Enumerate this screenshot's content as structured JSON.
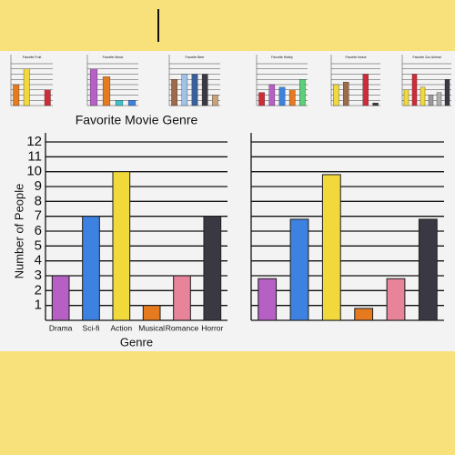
{
  "chart_data": [
    {
      "type": "bar",
      "title": "Favorite Movie Genre",
      "xlabel": "Genre",
      "ylabel": "Number of People",
      "categories": [
        "Drama",
        "Sci-fi",
        "Action",
        "Musical",
        "Romance",
        "Horror"
      ],
      "values": [
        3,
        7,
        10,
        1,
        3,
        7
      ],
      "colors": [
        "#b65fc4",
        "#3d82e0",
        "#f2d93b",
        "#e67a1e",
        "#e8849a",
        "#3a3842"
      ],
      "ylim": [
        0,
        12
      ],
      "yticks": [
        1,
        2,
        3,
        4,
        5,
        6,
        7,
        8,
        9,
        10,
        11,
        12
      ],
      "grid": true,
      "tick_labels": true
    },
    {
      "type": "bar",
      "categories": [
        null,
        null,
        null,
        null,
        null,
        null
      ],
      "values": [
        2.8,
        6.8,
        9.8,
        0.8,
        2.8,
        6.8
      ],
      "colors": [
        "#b65fc4",
        "#3d82e0",
        "#f2d93b",
        "#e67a1e",
        "#e8849a",
        "#3a3842"
      ],
      "ylim": [
        0,
        12
      ],
      "yticks": [
        1,
        2,
        3,
        4,
        5,
        6,
        7,
        8,
        9,
        10,
        11,
        12
      ],
      "grid": true,
      "tick_labels": false
    },
    {
      "type": "bar",
      "title": "Favorite Fruit",
      "values": [
        4,
        7,
        0,
        3
      ],
      "colors": [
        "#e67a1e",
        "#f2d93b",
        "#7cc46a",
        "#d12b3a"
      ],
      "ylim": [
        0,
        8
      ],
      "yticks": [
        1,
        2,
        3,
        4,
        5,
        6,
        7,
        8
      ],
      "grid": true,
      "tick_labels": false
    },
    {
      "type": "bar",
      "title": "Favorite Music",
      "values": [
        7,
        5.5,
        1,
        1
      ],
      "colors": [
        "#b65fc4",
        "#e67a1e",
        "#3fc1c9",
        "#3d82e0"
      ],
      "ylim": [
        0,
        8
      ],
      "yticks": [
        1,
        2,
        3,
        4,
        5,
        6,
        7,
        8
      ],
      "grid": true,
      "tick_labels": false
    },
    {
      "type": "bar",
      "title": "Favorite Beer",
      "values": [
        5,
        6,
        6,
        6,
        2
      ],
      "colors": [
        "#9b6b4a",
        "#9fc3e8",
        "#3a5f9a",
        "#3a3842",
        "#c9a27a"
      ],
      "ylim": [
        0,
        8
      ],
      "yticks": [
        1,
        2,
        3,
        4,
        5,
        6,
        7,
        8
      ],
      "grid": true,
      "tick_labels": false
    },
    {
      "type": "bar",
      "title": "Favorite Hobby",
      "values": [
        2.5,
        4,
        3.5,
        3,
        5
      ],
      "colors": [
        "#d12b3a",
        "#b65fc4",
        "#3d82e0",
        "#e67a1e",
        "#5ccf7a"
      ],
      "ylim": [
        0,
        8
      ],
      "yticks": [
        1,
        2,
        3,
        4,
        5,
        6,
        7,
        8
      ],
      "grid": true,
      "tick_labels": false
    },
    {
      "type": "bar",
      "title": "Favorite Insect",
      "values": [
        4,
        4.5,
        0,
        6,
        0.5
      ],
      "colors": [
        "#f2d93b",
        "#9b6b4a",
        "#eeeeee",
        "#d12b3a",
        "#3a3842"
      ],
      "ylim": [
        0,
        8
      ],
      "yticks": [
        1,
        2,
        3,
        4,
        5,
        6,
        7,
        8
      ],
      "grid": true,
      "tick_labels": false
    },
    {
      "type": "bar",
      "title": "Favorite Zoo Animal",
      "values": [
        3,
        6,
        3.5,
        2,
        2.5,
        5
      ],
      "colors": [
        "#f2d93b",
        "#d12b3a",
        "#f2d93b",
        "#9a9a9a",
        "#b0b0b0",
        "#3a3842"
      ],
      "ylim": [
        0,
        8
      ],
      "yticks": [
        1,
        2,
        3,
        4,
        5,
        6,
        7,
        8
      ],
      "grid": true,
      "tick_labels": false
    }
  ]
}
